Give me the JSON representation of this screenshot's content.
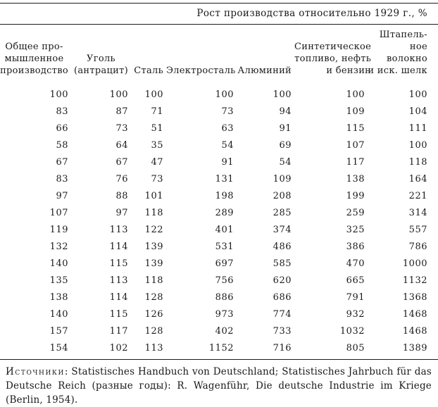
{
  "colors": {
    "background": "#ffffff",
    "text": "#1a1a1a",
    "rule": "#1c1c1c"
  },
  "table": {
    "title": "Рост производства относительно 1929 г., %",
    "column_headers": [
      {
        "lines": [
          "Общее про-",
          "мышленное",
          "производство"
        ]
      },
      {
        "lines": [
          "Уголь",
          "(антрацит)"
        ]
      },
      {
        "lines": [
          "Сталь"
        ]
      },
      {
        "lines": [
          "Электросталь"
        ]
      },
      {
        "lines": [
          "Алюминий"
        ]
      },
      {
        "lines": [
          "Синтетическое",
          "топливо, нефть",
          "и бензин"
        ]
      },
      {
        "lines": [
          "Штапель-",
          "ное волокно",
          "и иск. шелк"
        ]
      }
    ],
    "rows": [
      [
        "100",
        "100",
        "100",
        "100",
        "100",
        "100",
        "100"
      ],
      [
        "83",
        "87",
        "71",
        "73",
        "94",
        "109",
        "104"
      ],
      [
        "66",
        "73",
        "51",
        "63",
        "91",
        "115",
        "111"
      ],
      [
        "58",
        "64",
        "35",
        "54",
        "69",
        "107",
        "100"
      ],
      [
        "67",
        "67",
        "47",
        "91",
        "54",
        "117",
        "118"
      ],
      [
        "83",
        "76",
        "73",
        "131",
        "109",
        "138",
        "164"
      ],
      [
        "97",
        "88",
        "101",
        "198",
        "208",
        "199",
        "221"
      ],
      [
        "107",
        "97",
        "118",
        "289",
        "285",
        "259",
        "314"
      ],
      [
        "119",
        "113",
        "122",
        "401",
        "374",
        "325",
        "557"
      ],
      [
        "132",
        "114",
        "139",
        "531",
        "486",
        "386",
        "786"
      ],
      [
        "140",
        "115",
        "139",
        "697",
        "585",
        "470",
        "1000"
      ],
      [
        "135",
        "113",
        "118",
        "756",
        "620",
        "665",
        "1132"
      ],
      [
        "138",
        "114",
        "128",
        "886",
        "686",
        "791",
        "1368"
      ],
      [
        "140",
        "115",
        "126",
        "973",
        "774",
        "932",
        "1468"
      ],
      [
        "157",
        "117",
        "128",
        "402",
        "733",
        "1032",
        "1468"
      ],
      [
        "154",
        "102",
        "113",
        "1152",
        "716",
        "805",
        "1389"
      ]
    ]
  },
  "source": {
    "label": "Источники",
    "text": ": Statistisches Handbuch von Deutschland; Statistisches Jahrbuch für das Deutsche Reich (разные годы): R. Wagenführ, Die deutsche Industrie im Kriege (Berlin, 1954)."
  }
}
